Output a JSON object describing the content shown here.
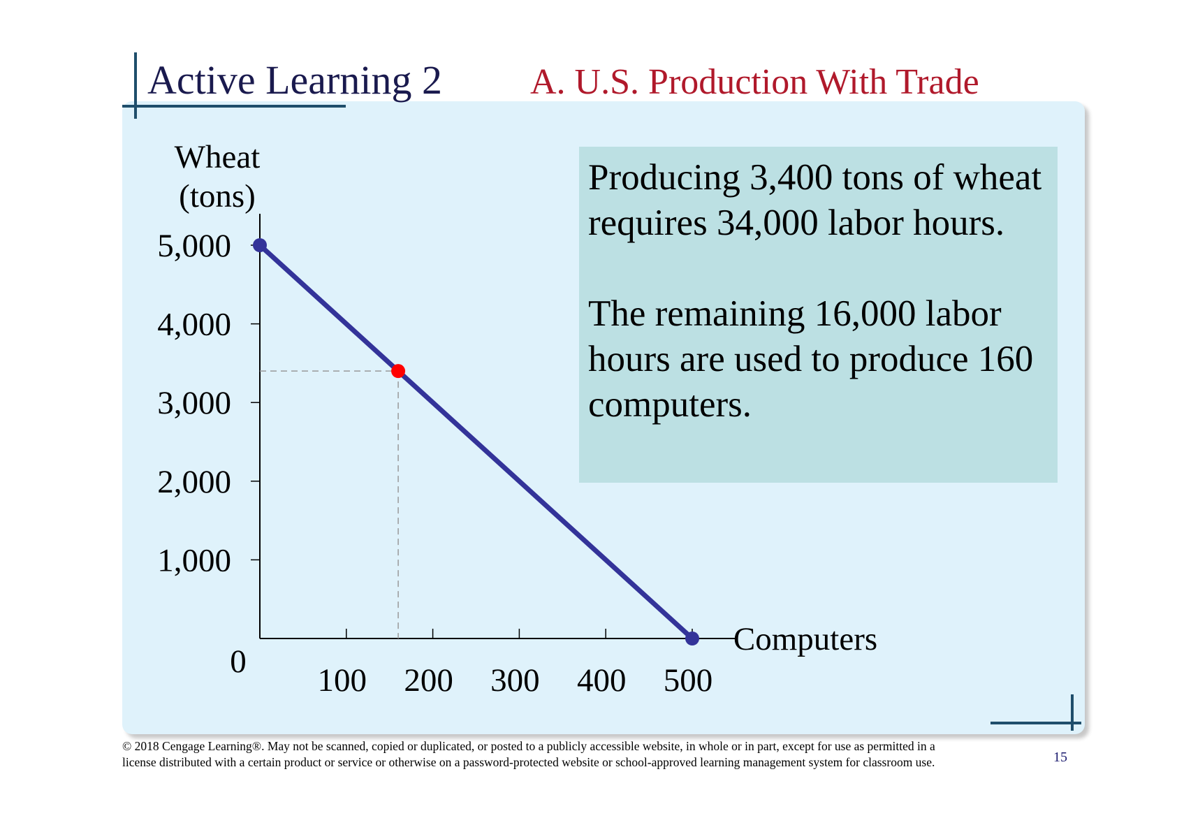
{
  "chart_data": {
    "type": "line",
    "title": "Active Learning 2",
    "subtitle": "A. U.S. Production With Trade",
    "y_label": [
      "Wheat",
      "(tons)"
    ],
    "x_label": "Computers",
    "x": [
      0,
      160,
      500
    ],
    "values": [
      5000,
      3400,
      0
    ],
    "color": "#333399",
    "marker_colors": [
      "#333399",
      "#ff0000",
      "#333399"
    ],
    "xlim": [
      0,
      550
    ],
    "ylim": [
      0,
      5400
    ],
    "xticks": [
      100,
      200,
      300,
      400,
      500
    ],
    "yticks": [
      0,
      {
        "value": 1000,
        "label": "1,000"
      },
      {
        "value": 2000,
        "label": "2,000"
      },
      {
        "value": 3000,
        "label": "3,000"
      },
      {
        "value": 4000,
        "label": "4,000"
      },
      {
        "value": 5000,
        "label": "5,000"
      }
    ],
    "grid": false,
    "annotation": [
      "Producing 3,400 tons of wheat requires 34,000 labor hours.",
      "The remaining 16,000 labor hours are used to produce 160 computers."
    ]
  },
  "footer": "© 2018 Cengage Learning®. May not be scanned, copied or duplicated, or posted to a publicly accessible website, in whole or in part, except for use as permitted in a license distributed with a certain product or service or otherwise on a password-protected website or school-approved learning management system for classroom use.",
  "page_number": "15"
}
